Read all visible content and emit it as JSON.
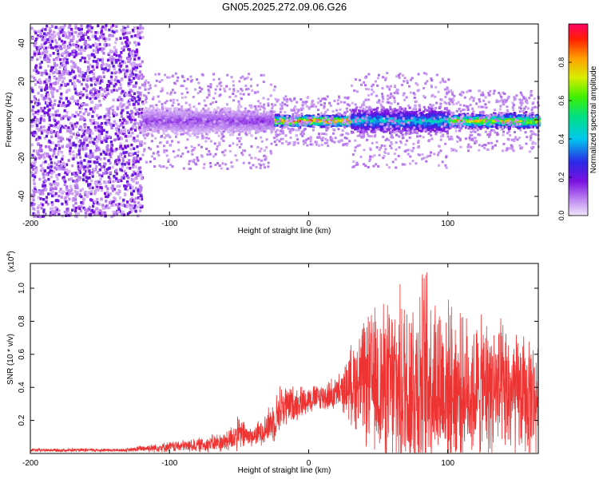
{
  "title": "GN05.2025.272.09.06.G26",
  "chart_data": [
    {
      "type": "heatmap",
      "xlabel": "Height of straight line (km)",
      "ylabel": "Frequency (Hz)",
      "xlim": [
        -200,
        165
      ],
      "ylim": [
        -50,
        50
      ],
      "xticks": [
        -200,
        -100,
        0,
        100
      ],
      "yticks": [
        -40,
        -20,
        0,
        20,
        40
      ],
      "grid": false,
      "colorbar": {
        "label": "Normalized spectral amplitude",
        "range": [
          0.0,
          1.0
        ],
        "ticks": [
          0.0,
          0.2,
          0.4,
          0.6,
          0.8
        ],
        "colormap": "rainbow (violet-blue-cyan-green-yellow-red)"
      },
      "regions": [
        {
          "x_range": [
            -200,
            -120
          ],
          "freq_range": [
            -50,
            50
          ],
          "amplitude": 0.05,
          "description": "broadband noise"
        },
        {
          "x_range": [
            -120,
            -25
          ],
          "freq_center": 0,
          "freq_halfwidth": 7,
          "amplitude": 0.15
        },
        {
          "x_range": [
            -25,
            30
          ],
          "freq_center": 0,
          "freq_halfwidth": 3,
          "amplitude": 0.95
        },
        {
          "x_range": [
            30,
            100
          ],
          "freq_center": 0,
          "freq_halfwidth": 7,
          "amplitude": 0.45
        },
        {
          "x_range": [
            100,
            165
          ],
          "freq_center": 0,
          "freq_halfwidth": 4,
          "amplitude": 0.75
        }
      ]
    },
    {
      "type": "line",
      "xlabel": "Height of straight line (km)",
      "ylabel": "SNR (10 * v/v)",
      "y_multiplier": "(x10",
      "y_multiplier_exp": "4",
      "y_multiplier_close": ")",
      "xlim": [
        -200,
        165
      ],
      "ylim": [
        0,
        1.15
      ],
      "xticks": [
        -200,
        -100,
        0,
        100
      ],
      "yticks": [
        0.2,
        0.4,
        0.6,
        0.8,
        1.0
      ],
      "grid": false,
      "color": "#ee3333",
      "envelope": {
        "x": [
          -200,
          -130,
          -120,
          -100,
          -80,
          -60,
          -50,
          -40,
          -30,
          -25,
          -20,
          -10,
          0,
          10,
          20,
          25,
          30,
          40,
          50,
          60,
          70,
          80,
          85,
          90,
          100,
          110,
          120,
          130,
          140,
          150,
          160,
          165
        ],
        "y_mean": [
          0.02,
          0.02,
          0.03,
          0.04,
          0.05,
          0.07,
          0.12,
          0.1,
          0.16,
          0.2,
          0.28,
          0.3,
          0.33,
          0.34,
          0.36,
          0.38,
          0.42,
          0.44,
          0.42,
          0.4,
          0.42,
          0.44,
          0.45,
          0.45,
          0.4,
          0.38,
          0.38,
          0.4,
          0.36,
          0.35,
          0.34,
          0.33
        ],
        "y_amplitude": [
          0.01,
          0.01,
          0.02,
          0.03,
          0.04,
          0.06,
          0.1,
          0.05,
          0.1,
          0.12,
          0.14,
          0.1,
          0.08,
          0.08,
          0.1,
          0.12,
          0.22,
          0.35,
          0.45,
          0.5,
          0.55,
          0.6,
          0.65,
          0.55,
          0.48,
          0.42,
          0.4,
          0.4,
          0.4,
          0.35,
          0.35,
          0.3
        ]
      }
    }
  ]
}
